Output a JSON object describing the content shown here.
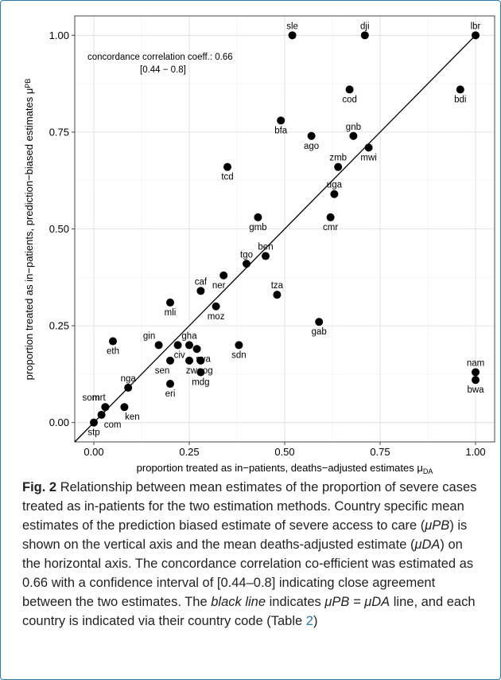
{
  "chart_data": {
    "type": "scatter",
    "xlabel": "proportion treated as in−patients, deaths−adjusted estimates μ",
    "xlabel_sub": "DA",
    "ylabel": "proportion treated as in−patients, prediction−biased estimates μ",
    "ylabel_sub": "PB",
    "xlim": [
      -0.05,
      1.05
    ],
    "ylim": [
      -0.05,
      1.05
    ],
    "x_ticks": [
      "0.00",
      "0.25",
      "0.50",
      "0.75",
      "1.00"
    ],
    "y_ticks": [
      "0.00",
      "0.25",
      "0.50",
      "0.75",
      "1.00"
    ],
    "grid": true,
    "annotation_line1": "concordance correlation coeff.: 0.66",
    "annotation_line2": "[0.44 − 0.8]",
    "reference_line": "y = x",
    "points": [
      {
        "label": "sle",
        "x": 0.52,
        "y": 1.0
      },
      {
        "label": "dji",
        "x": 0.71,
        "y": 1.0
      },
      {
        "label": "lbr",
        "x": 1.0,
        "y": 1.0
      },
      {
        "label": "cod",
        "x": 0.67,
        "y": 0.86
      },
      {
        "label": "bdi",
        "x": 0.96,
        "y": 0.86
      },
      {
        "label": "bfa",
        "x": 0.49,
        "y": 0.78
      },
      {
        "label": "ago",
        "x": 0.57,
        "y": 0.74
      },
      {
        "label": "gnb",
        "x": 0.68,
        "y": 0.74
      },
      {
        "label": "mwi",
        "x": 0.72,
        "y": 0.71
      },
      {
        "label": "zmb",
        "x": 0.64,
        "y": 0.66
      },
      {
        "label": "tcd",
        "x": 0.35,
        "y": 0.66
      },
      {
        "label": "uga",
        "x": 0.63,
        "y": 0.59
      },
      {
        "label": "gmb",
        "x": 0.43,
        "y": 0.53
      },
      {
        "label": "cmr",
        "x": 0.62,
        "y": 0.53
      },
      {
        "label": "ben",
        "x": 0.45,
        "y": 0.43
      },
      {
        "label": "tgo",
        "x": 0.4,
        "y": 0.41
      },
      {
        "label": "ner",
        "x": 0.34,
        "y": 0.38
      },
      {
        "label": "caf",
        "x": 0.28,
        "y": 0.34
      },
      {
        "label": "tza",
        "x": 0.48,
        "y": 0.33
      },
      {
        "label": "moz",
        "x": 0.32,
        "y": 0.3
      },
      {
        "label": "mli",
        "x": 0.2,
        "y": 0.31
      },
      {
        "label": "gab",
        "x": 0.59,
        "y": 0.26
      },
      {
        "label": "eth",
        "x": 0.05,
        "y": 0.21
      },
      {
        "label": "gin",
        "x": 0.17,
        "y": 0.2
      },
      {
        "label": "civ",
        "x": 0.22,
        "y": 0.2
      },
      {
        "label": "gha",
        "x": 0.25,
        "y": 0.2
      },
      {
        "label": "rwa",
        "x": 0.27,
        "y": 0.19
      },
      {
        "label": "sdn",
        "x": 0.38,
        "y": 0.2
      },
      {
        "label": "sen",
        "x": 0.2,
        "y": 0.16
      },
      {
        "label": "zwe",
        "x": 0.25,
        "y": 0.16
      },
      {
        "label": "cog",
        "x": 0.28,
        "y": 0.16
      },
      {
        "label": "mdg",
        "x": 0.28,
        "y": 0.13
      },
      {
        "label": "eri",
        "x": 0.2,
        "y": 0.1
      },
      {
        "label": "nga",
        "x": 0.09,
        "y": 0.09
      },
      {
        "label": "mrt",
        "x": 0.03,
        "y": 0.04
      },
      {
        "label": "som",
        "x": 0.03,
        "y": 0.04
      },
      {
        "label": "ken",
        "x": 0.08,
        "y": 0.04
      },
      {
        "label": "com",
        "x": 0.02,
        "y": 0.02
      },
      {
        "label": "stp",
        "x": 0.0,
        "y": 0.0
      },
      {
        "label": "nam",
        "x": 1.0,
        "y": 0.13
      },
      {
        "label": "bwa",
        "x": 1.0,
        "y": 0.11
      }
    ]
  },
  "caption": {
    "fig_label": "Fig. 2",
    "sentence1": "Relationship between mean estimates of the proportion of severe cases treated as in-patients for the two estimation methods.",
    "sentence2a": "Country specific mean estimates of the prediction biased estimate of severe access to care (",
    "sentence2b": ") is shown on the vertical axis and the mean deaths-adjusted estimate (",
    "sentence2c": ") on the horizontal axis. The concordance correlation co-efficient was estimated as 0.66 with a confidence interval of [0.44–0.8] indicating close agreement between the two estimates. The ",
    "black_line": "black line",
    "sentence3a": " indicates ",
    "sentence3b": " line, and each country is indicated via their country code (Table ",
    "table_ref": "2",
    "sentence3c": ")",
    "mu_pb": "μPB",
    "mu_da": "μDA",
    "eq": "μPB = μDA"
  }
}
